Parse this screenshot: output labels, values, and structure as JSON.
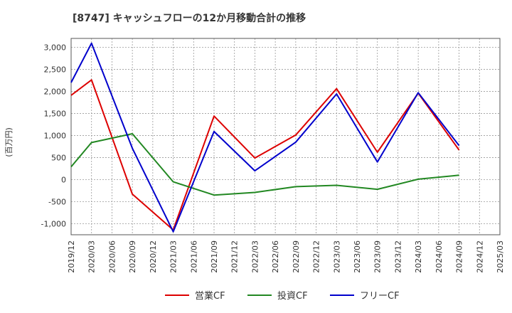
{
  "chart_data": {
    "type": "line",
    "title": "[8747]  キャッシュフローの12か月移動合計の推移",
    "ylabel": "(百万円)",
    "xlabel": "",
    "ylim": [
      -1250,
      3200
    ],
    "yticks": [
      3000,
      2500,
      2000,
      1500,
      1000,
      500,
      0,
      -500,
      -1000
    ],
    "ytick_labels": [
      "3,000",
      "2,500",
      "2,000",
      "1,500",
      "1,000",
      "500",
      "0",
      "-500",
      "-1,000"
    ],
    "categories": [
      "2019/12",
      "2020/03",
      "2020/06",
      "2020/09",
      "2020/12",
      "2021/03",
      "2021/06",
      "2021/09",
      "2021/12",
      "2022/03",
      "2022/06",
      "2022/09",
      "2022/12",
      "2023/03",
      "2023/06",
      "2023/09",
      "2023/12",
      "2024/03",
      "2024/06",
      "2024/09",
      "2024/12",
      "2025/03"
    ],
    "grid": true,
    "legend_position": "bottom",
    "series": [
      {
        "name": "営業CF",
        "color": "#dd0000",
        "values": [
          1910,
          2260,
          null,
          -330,
          null,
          -1140,
          null,
          1440,
          null,
          490,
          null,
          1010,
          null,
          2060,
          null,
          620,
          null,
          1960,
          null,
          670,
          null,
          null
        ]
      },
      {
        "name": "投資CF",
        "color": "#228822",
        "values": [
          290,
          840,
          null,
          1040,
          null,
          -50,
          null,
          -350,
          null,
          -290,
          null,
          -160,
          null,
          -130,
          null,
          -220,
          null,
          10,
          null,
          100,
          null,
          null
        ]
      },
      {
        "name": "フリーCF",
        "color": "#0000cc",
        "values": [
          2200,
          3090,
          null,
          710,
          null,
          -1180,
          null,
          1090,
          null,
          200,
          null,
          850,
          null,
          1940,
          null,
          400,
          null,
          1970,
          null,
          770,
          null,
          null
        ]
      }
    ]
  }
}
